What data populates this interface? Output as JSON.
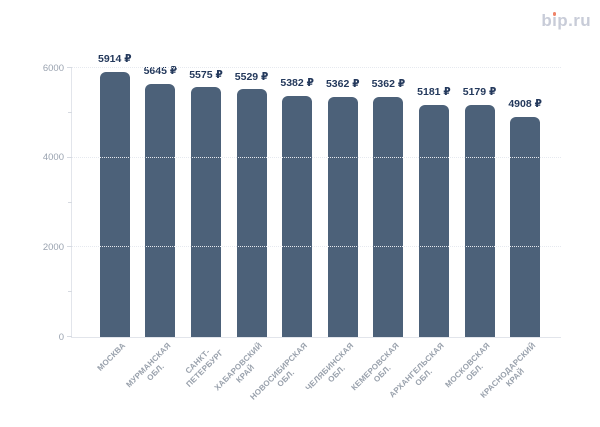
{
  "header": {
    "logo_text": "bip.ru",
    "logo_color": "#c8ccd8",
    "logo_dot_color": "#ef8368"
  },
  "chart_data": {
    "type": "bar",
    "title": "",
    "categories": [
      "МОСКВА",
      "МУРМАНСКАЯ ОБЛ.",
      "САНКТ-ПЕТЕРБУРГ",
      "ХАБАРОВСКИЙ КРАЙ",
      "НОВОСИБИРСКАЯ ОБЛ.",
      "ЧЕЛЯБИНСКАЯ ОБЛ.",
      "КЕМЕРОВСКАЯ ОБЛ.",
      "АРХАНГЕЛЬСКАЯ ОБЛ.",
      "МОСКОВСКАЯ ОБЛ.",
      "КРАСНОДАРСКИЙ КРАЙ"
    ],
    "values": [
      5914,
      5645,
      5575,
      5529,
      5382,
      5362,
      5362,
      5181,
      5179,
      4908
    ],
    "value_labels": [
      "5914 ₽",
      "5645 ₽",
      "5575 ₽",
      "5529 ₽",
      "5382 ₽",
      "5362 ₽",
      "5362 ₽",
      "5181 ₽",
      "5179 ₽",
      "4908 ₽"
    ],
    "currency_suffix": "₽",
    "ylim": [
      0,
      6000
    ],
    "yticks_major": [
      0,
      2000,
      4000,
      6000
    ],
    "yticks_minor": [
      1000,
      3000,
      5000
    ],
    "grid": "horizontal-dotted-major-only",
    "legend": "none",
    "bar_color": "#4c6179",
    "value_label_color": "#24395c",
    "axis_label_color": "#9aa3b0",
    "x_label_color": "#99a1ac"
  }
}
